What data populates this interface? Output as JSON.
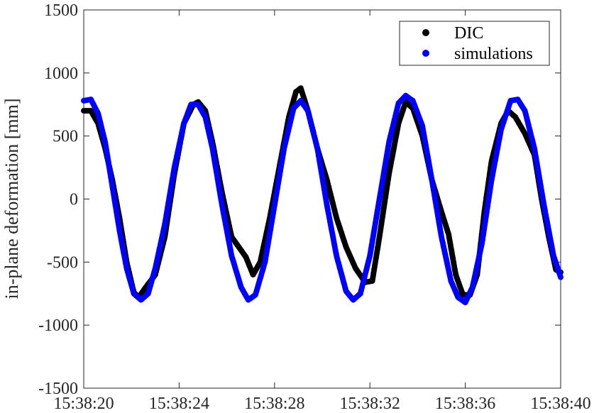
{
  "chart_data": {
    "type": "scatter",
    "ylabel": "in-plane deformation [mm]",
    "ylim": [
      -1500,
      1500
    ],
    "yticks": [
      -1500,
      -1000,
      -500,
      0,
      500,
      1000,
      1500
    ],
    "ytick_labels": [
      "-1500",
      "-1000",
      "-500",
      "0",
      "500",
      "1000",
      "1500"
    ],
    "xlim": [
      0,
      20
    ],
    "xticks": [
      0,
      4,
      8,
      12,
      16,
      20
    ],
    "xtick_labels": [
      "15:38:20",
      "15:38:24",
      "15:38:28",
      "15:38:32",
      "15:38:36",
      "15:38:40"
    ],
    "grid": false,
    "legend_position": "top-right",
    "series": [
      {
        "name": "DIC",
        "color": "#000000",
        "points": [
          [
            0.0,
            700
          ],
          [
            0.3,
            700
          ],
          [
            0.6,
            600
          ],
          [
            0.9,
            400
          ],
          [
            1.2,
            150
          ],
          [
            1.5,
            -150
          ],
          [
            1.8,
            -500
          ],
          [
            2.1,
            -740
          ],
          [
            2.3,
            -780
          ],
          [
            2.6,
            -700
          ],
          [
            3.0,
            -600
          ],
          [
            3.4,
            -300
          ],
          [
            3.8,
            200
          ],
          [
            4.2,
            600
          ],
          [
            4.6,
            750
          ],
          [
            4.8,
            770
          ],
          [
            5.1,
            700
          ],
          [
            5.4,
            450
          ],
          [
            5.8,
            50
          ],
          [
            6.2,
            -300
          ],
          [
            6.5,
            -380
          ],
          [
            6.8,
            -460
          ],
          [
            7.1,
            -600
          ],
          [
            7.4,
            -500
          ],
          [
            7.8,
            -150
          ],
          [
            8.2,
            250
          ],
          [
            8.6,
            650
          ],
          [
            8.9,
            850
          ],
          [
            9.1,
            880
          ],
          [
            9.4,
            700
          ],
          [
            9.8,
            400
          ],
          [
            10.2,
            150
          ],
          [
            10.6,
            -150
          ],
          [
            11.0,
            -380
          ],
          [
            11.4,
            -550
          ],
          [
            11.8,
            -660
          ],
          [
            12.1,
            -650
          ],
          [
            12.4,
            -300
          ],
          [
            12.8,
            200
          ],
          [
            13.2,
            600
          ],
          [
            13.5,
            770
          ],
          [
            13.8,
            720
          ],
          [
            14.2,
            500
          ],
          [
            14.6,
            150
          ],
          [
            15.0,
            -100
          ],
          [
            15.3,
            -280
          ],
          [
            15.6,
            -600
          ],
          [
            15.9,
            -760
          ],
          [
            16.2,
            -760
          ],
          [
            16.5,
            -600
          ],
          [
            16.8,
            -100
          ],
          [
            17.1,
            300
          ],
          [
            17.5,
            600
          ],
          [
            17.8,
            700
          ],
          [
            18.1,
            650
          ],
          [
            18.5,
            520
          ],
          [
            18.9,
            350
          ],
          [
            19.2,
            0
          ],
          [
            19.5,
            -300
          ],
          [
            19.8,
            -560
          ],
          [
            20.0,
            -580
          ]
        ]
      },
      {
        "name": "simulations",
        "color": "#0000ff",
        "points": [
          [
            0.0,
            780
          ],
          [
            0.3,
            790
          ],
          [
            0.6,
            680
          ],
          [
            0.9,
            450
          ],
          [
            1.2,
            100
          ],
          [
            1.5,
            -250
          ],
          [
            1.8,
            -550
          ],
          [
            2.1,
            -750
          ],
          [
            2.4,
            -800
          ],
          [
            2.7,
            -750
          ],
          [
            3.0,
            -550
          ],
          [
            3.4,
            -200
          ],
          [
            3.8,
            250
          ],
          [
            4.2,
            600
          ],
          [
            4.5,
            750
          ],
          [
            4.8,
            750
          ],
          [
            5.1,
            650
          ],
          [
            5.4,
            400
          ],
          [
            5.8,
            -50
          ],
          [
            6.2,
            -450
          ],
          [
            6.6,
            -700
          ],
          [
            6.9,
            -800
          ],
          [
            7.2,
            -760
          ],
          [
            7.6,
            -500
          ],
          [
            8.0,
            -50
          ],
          [
            8.4,
            400
          ],
          [
            8.8,
            720
          ],
          [
            9.1,
            780
          ],
          [
            9.4,
            700
          ],
          [
            9.8,
            400
          ],
          [
            10.2,
            -50
          ],
          [
            10.6,
            -450
          ],
          [
            11.0,
            -730
          ],
          [
            11.3,
            -800
          ],
          [
            11.6,
            -750
          ],
          [
            12.0,
            -450
          ],
          [
            12.4,
            0
          ],
          [
            12.8,
            450
          ],
          [
            13.2,
            760
          ],
          [
            13.5,
            820
          ],
          [
            13.8,
            780
          ],
          [
            14.2,
            580
          ],
          [
            14.6,
            150
          ],
          [
            15.0,
            -300
          ],
          [
            15.4,
            -650
          ],
          [
            15.7,
            -780
          ],
          [
            16.0,
            -820
          ],
          [
            16.3,
            -700
          ],
          [
            16.7,
            -350
          ],
          [
            17.1,
            150
          ],
          [
            17.5,
            550
          ],
          [
            17.9,
            780
          ],
          [
            18.2,
            790
          ],
          [
            18.5,
            700
          ],
          [
            18.9,
            400
          ],
          [
            19.3,
            -50
          ],
          [
            19.7,
            -450
          ],
          [
            20.0,
            -620
          ]
        ]
      }
    ]
  }
}
